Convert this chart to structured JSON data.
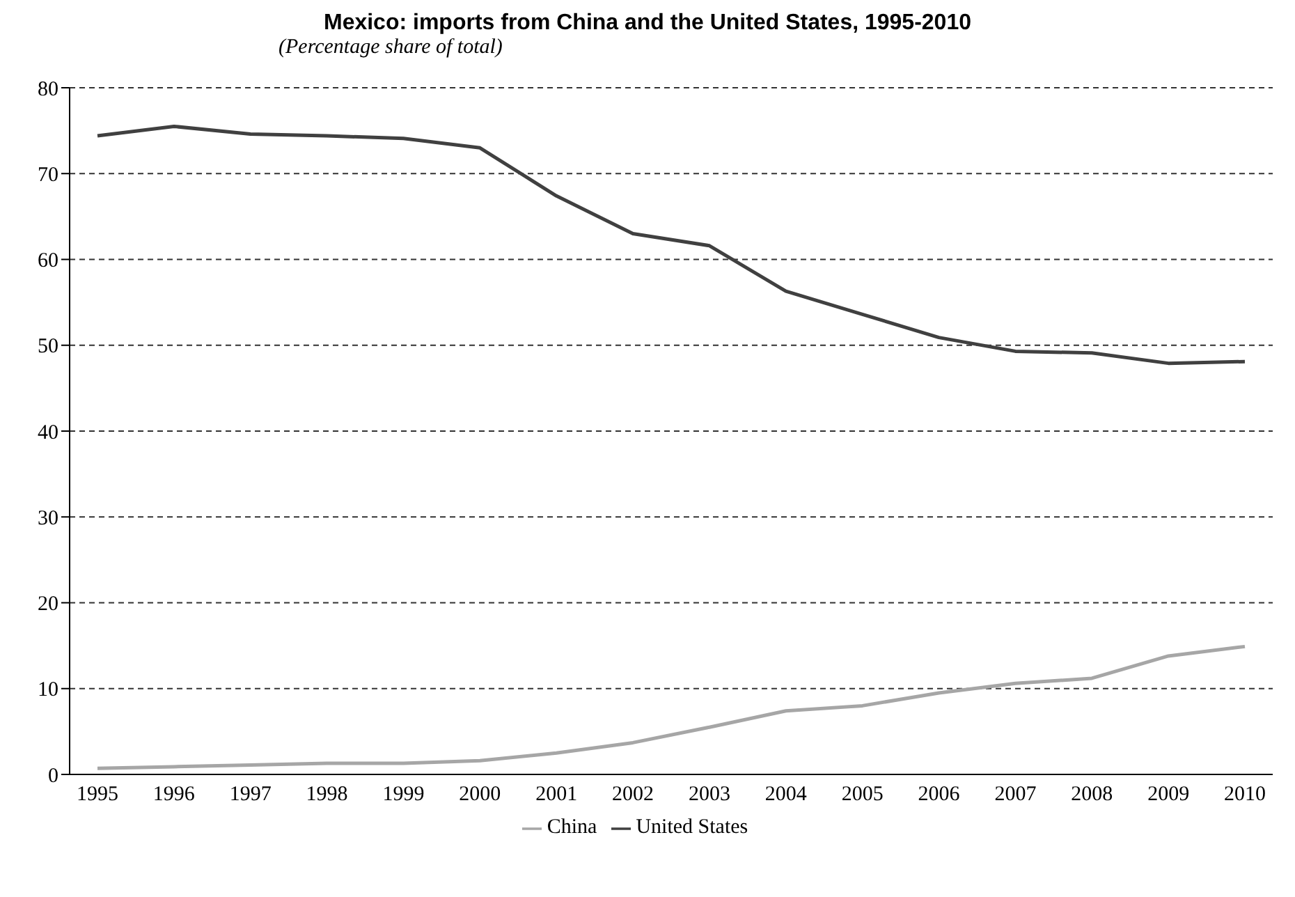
{
  "chart_data": {
    "type": "line",
    "title": "Mexico: imports from China and the United States, 1995-2010",
    "subtitle": "(Percentage share of total)",
    "categories": [
      "1995",
      "1996",
      "1997",
      "1998",
      "1999",
      "2000",
      "2001",
      "2002",
      "2003",
      "2004",
      "2005",
      "2006",
      "2007",
      "2008",
      "2009",
      "2010"
    ],
    "series": [
      {
        "name": "United States",
        "color": "#404040",
        "values": [
          74.4,
          75.5,
          74.6,
          74.4,
          74.1,
          73.0,
          67.4,
          63.0,
          61.6,
          56.3,
          53.6,
          50.9,
          49.3,
          49.1,
          47.9,
          48.1
        ]
      },
      {
        "name": "China",
        "color": "#a6a6a6",
        "values": [
          0.7,
          0.9,
          1.1,
          1.3,
          1.3,
          1.6,
          2.5,
          3.7,
          5.5,
          7.4,
          8.0,
          9.5,
          10.6,
          11.2,
          13.8,
          14.9
        ]
      }
    ],
    "ylim": [
      0,
      80
    ],
    "yticks": [
      0,
      10,
      20,
      30,
      40,
      50,
      60,
      70,
      80
    ],
    "grid": "y",
    "legend": "bottom",
    "marker": "none",
    "line_style": "solid"
  }
}
